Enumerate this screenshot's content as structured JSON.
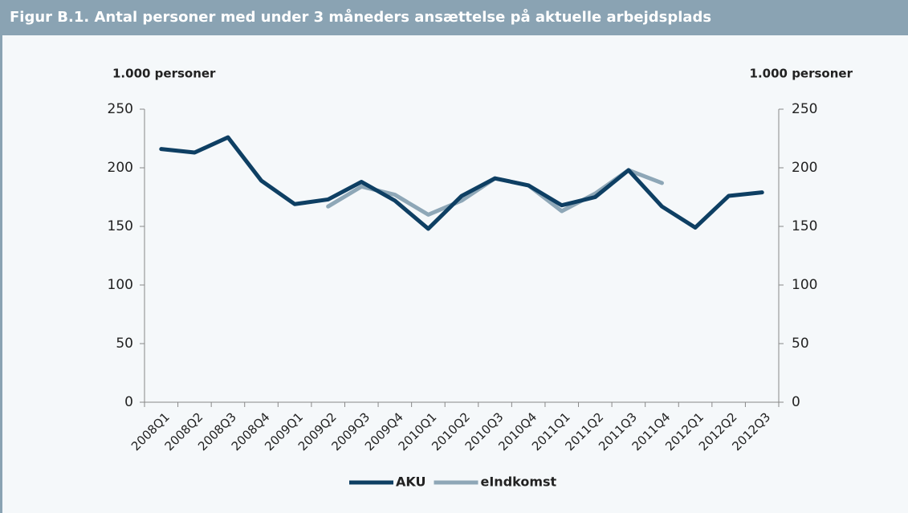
{
  "chart_data": {
    "type": "line",
    "title": "Figur B.1. Antal personer med under 3 måneders ansættelse på aktuelle arbejdsplads",
    "y_label": "1.000 personer",
    "y2_label": "1.000 personer",
    "categories": [
      "2008Q1",
      "2008Q2",
      "2008Q3",
      "2008Q4",
      "2009Q1",
      "2009Q2",
      "2009Q3",
      "2009Q4",
      "2010Q1",
      "2010Q2",
      "2010Q3",
      "2010Q4",
      "2011Q1",
      "2011Q2",
      "2011Q3",
      "2011Q4",
      "2012Q1",
      "2012Q2",
      "2012Q3"
    ],
    "series": [
      {
        "name": "AKU",
        "color": "#0e3f63",
        "values": [
          216,
          213,
          226,
          189,
          169,
          173,
          188,
          172,
          148,
          176,
          191,
          185,
          168,
          175,
          198,
          167,
          149,
          176,
          179
        ]
      },
      {
        "name": "eIndkomst",
        "color": "#8ea7b7",
        "values": [
          null,
          null,
          null,
          null,
          null,
          167,
          184,
          177,
          160,
          172,
          191,
          185,
          163,
          178,
          198,
          187,
          null,
          null,
          null
        ]
      }
    ],
    "ylim": [
      0,
      250
    ],
    "yticks": [
      0,
      50,
      100,
      150,
      200,
      250
    ],
    "y2lim": [
      0,
      250
    ],
    "y2ticks": [
      0,
      50,
      100,
      150,
      200,
      250
    ],
    "legend": "bottom"
  }
}
